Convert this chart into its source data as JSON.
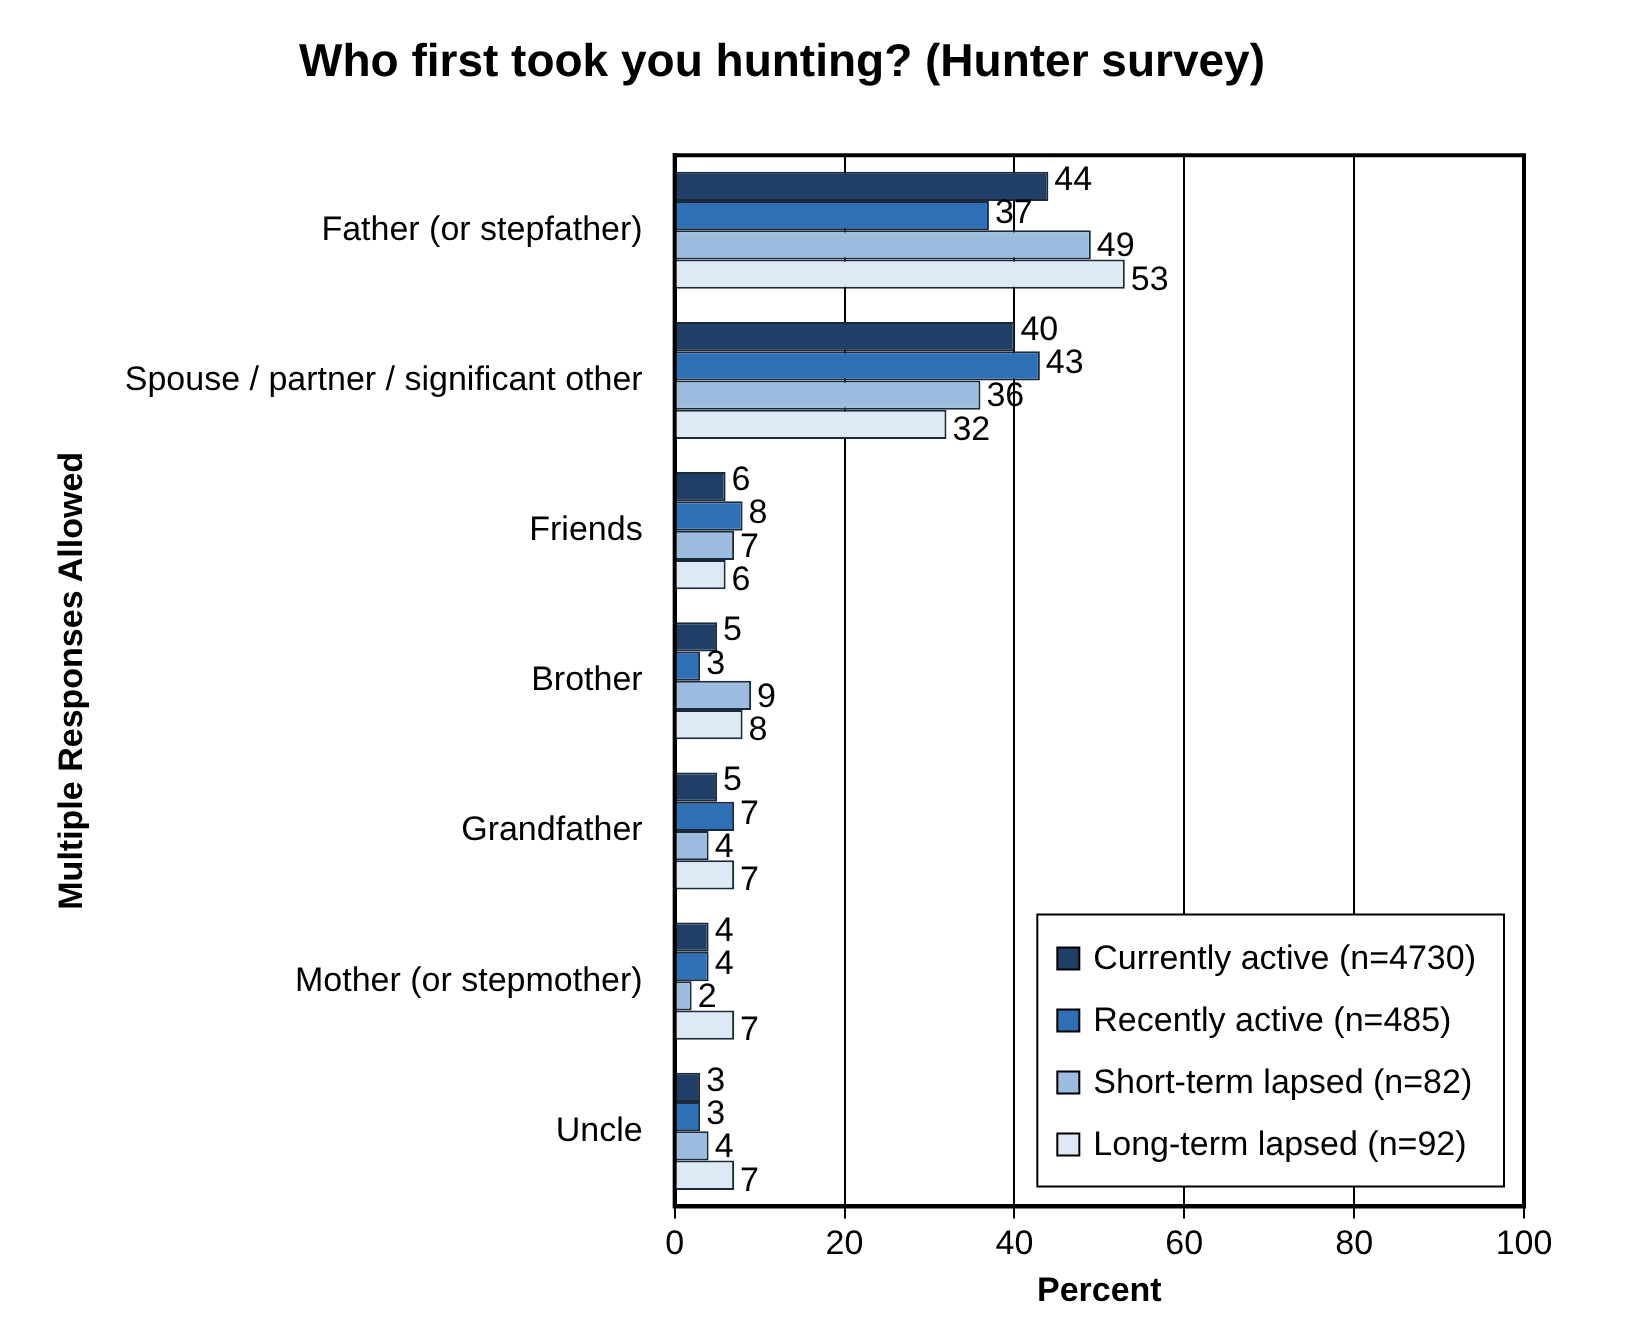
{
  "chart_data": {
    "type": "bar",
    "orientation": "horizontal",
    "title": "Who first took you hunting? (Hunter survey)",
    "xlabel": "Percent",
    "ylabel": "Multiple Responses Allowed",
    "categories": [
      "Father (or stepfather)",
      "Spouse / partner / significant other",
      "Friends",
      "Brother",
      "Grandfather",
      "Mother (or stepmother)",
      "Uncle"
    ],
    "series": [
      {
        "name": "Currently active (n=4730)",
        "color": "#1f3f66",
        "values": [
          44,
          40,
          6,
          5,
          5,
          4,
          3
        ]
      },
      {
        "name": "Recently active (n=485)",
        "color": "#2e6fb5",
        "values": [
          37,
          43,
          8,
          3,
          7,
          4,
          3
        ]
      },
      {
        "name": "Short-term lapsed (n=82)",
        "color": "#9dbde0",
        "values": [
          49,
          36,
          7,
          9,
          4,
          2,
          4
        ]
      },
      {
        "name": "Long-term lapsed (n=92)",
        "color": "#dde9f5",
        "values": [
          53,
          32,
          6,
          8,
          7,
          7,
          7
        ]
      }
    ],
    "xlim": [
      0,
      100
    ],
    "xticks": [
      0,
      20,
      40,
      60,
      80,
      100
    ],
    "grid": "x",
    "legend": "bottom right",
    "data_labels": true
  }
}
